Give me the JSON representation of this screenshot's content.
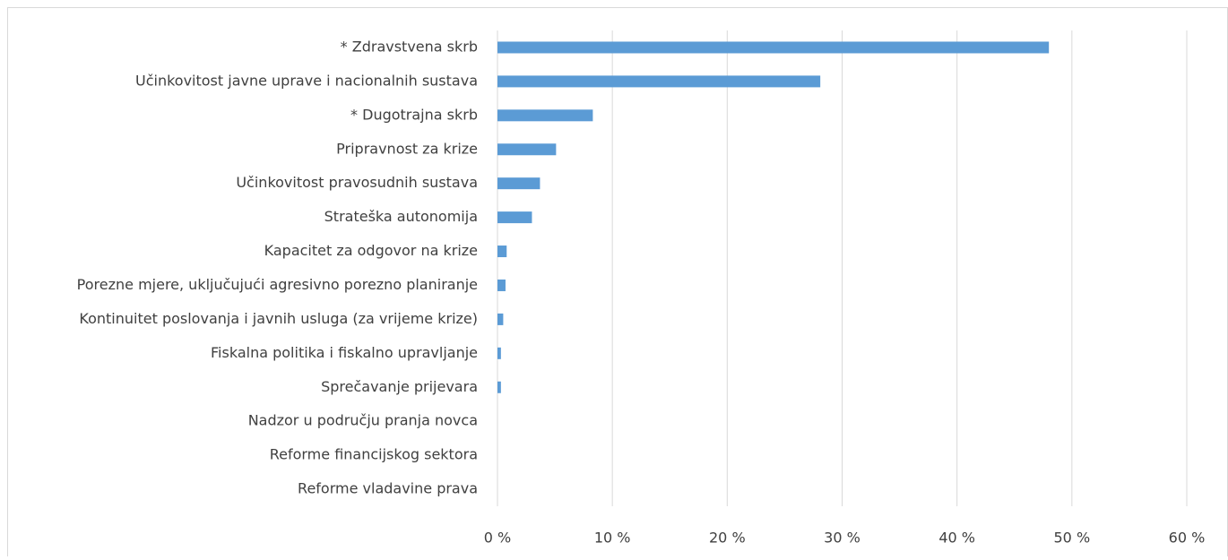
{
  "chart_data": {
    "type": "barh",
    "categories": [
      "* Zdravstvena skrb",
      "Učinkovitost javne uprave i nacionalnih sustava",
      "* Dugotrajna skrb",
      "Pripravnost za krize",
      "Učinkovitost pravosudnih sustava",
      "Strateška autonomija",
      "Kapacitet za odgovor na krize",
      "Porezne mjere, uključujući agresivno porezno planiranje",
      "Kontinuitet poslovanja i javnih usluga (za vrijeme krize)",
      "Fiskalna politika i fiskalno upravljanje",
      "Sprečavanje prijevara",
      "Nadzor u području pranja novca",
      "Reforme financijskog sektora",
      "Reforme vladavine prava"
    ],
    "values": [
      48.0,
      28.1,
      8.3,
      5.1,
      3.7,
      3.0,
      0.8,
      0.7,
      0.5,
      0.3,
      0.3,
      0,
      0,
      0
    ],
    "color": "#5b9bd5",
    "xlim": [
      0,
      60
    ],
    "xticks": [
      {
        "value": 0,
        "label": "0 %"
      },
      {
        "value": 10,
        "label": "10 %"
      },
      {
        "value": 20,
        "label": "20 %"
      },
      {
        "value": 30,
        "label": "30 %"
      },
      {
        "value": 40,
        "label": "40 %"
      },
      {
        "value": 50,
        "label": "50 %"
      },
      {
        "value": 60,
        "label": "60 %"
      }
    ],
    "grid": true
  }
}
